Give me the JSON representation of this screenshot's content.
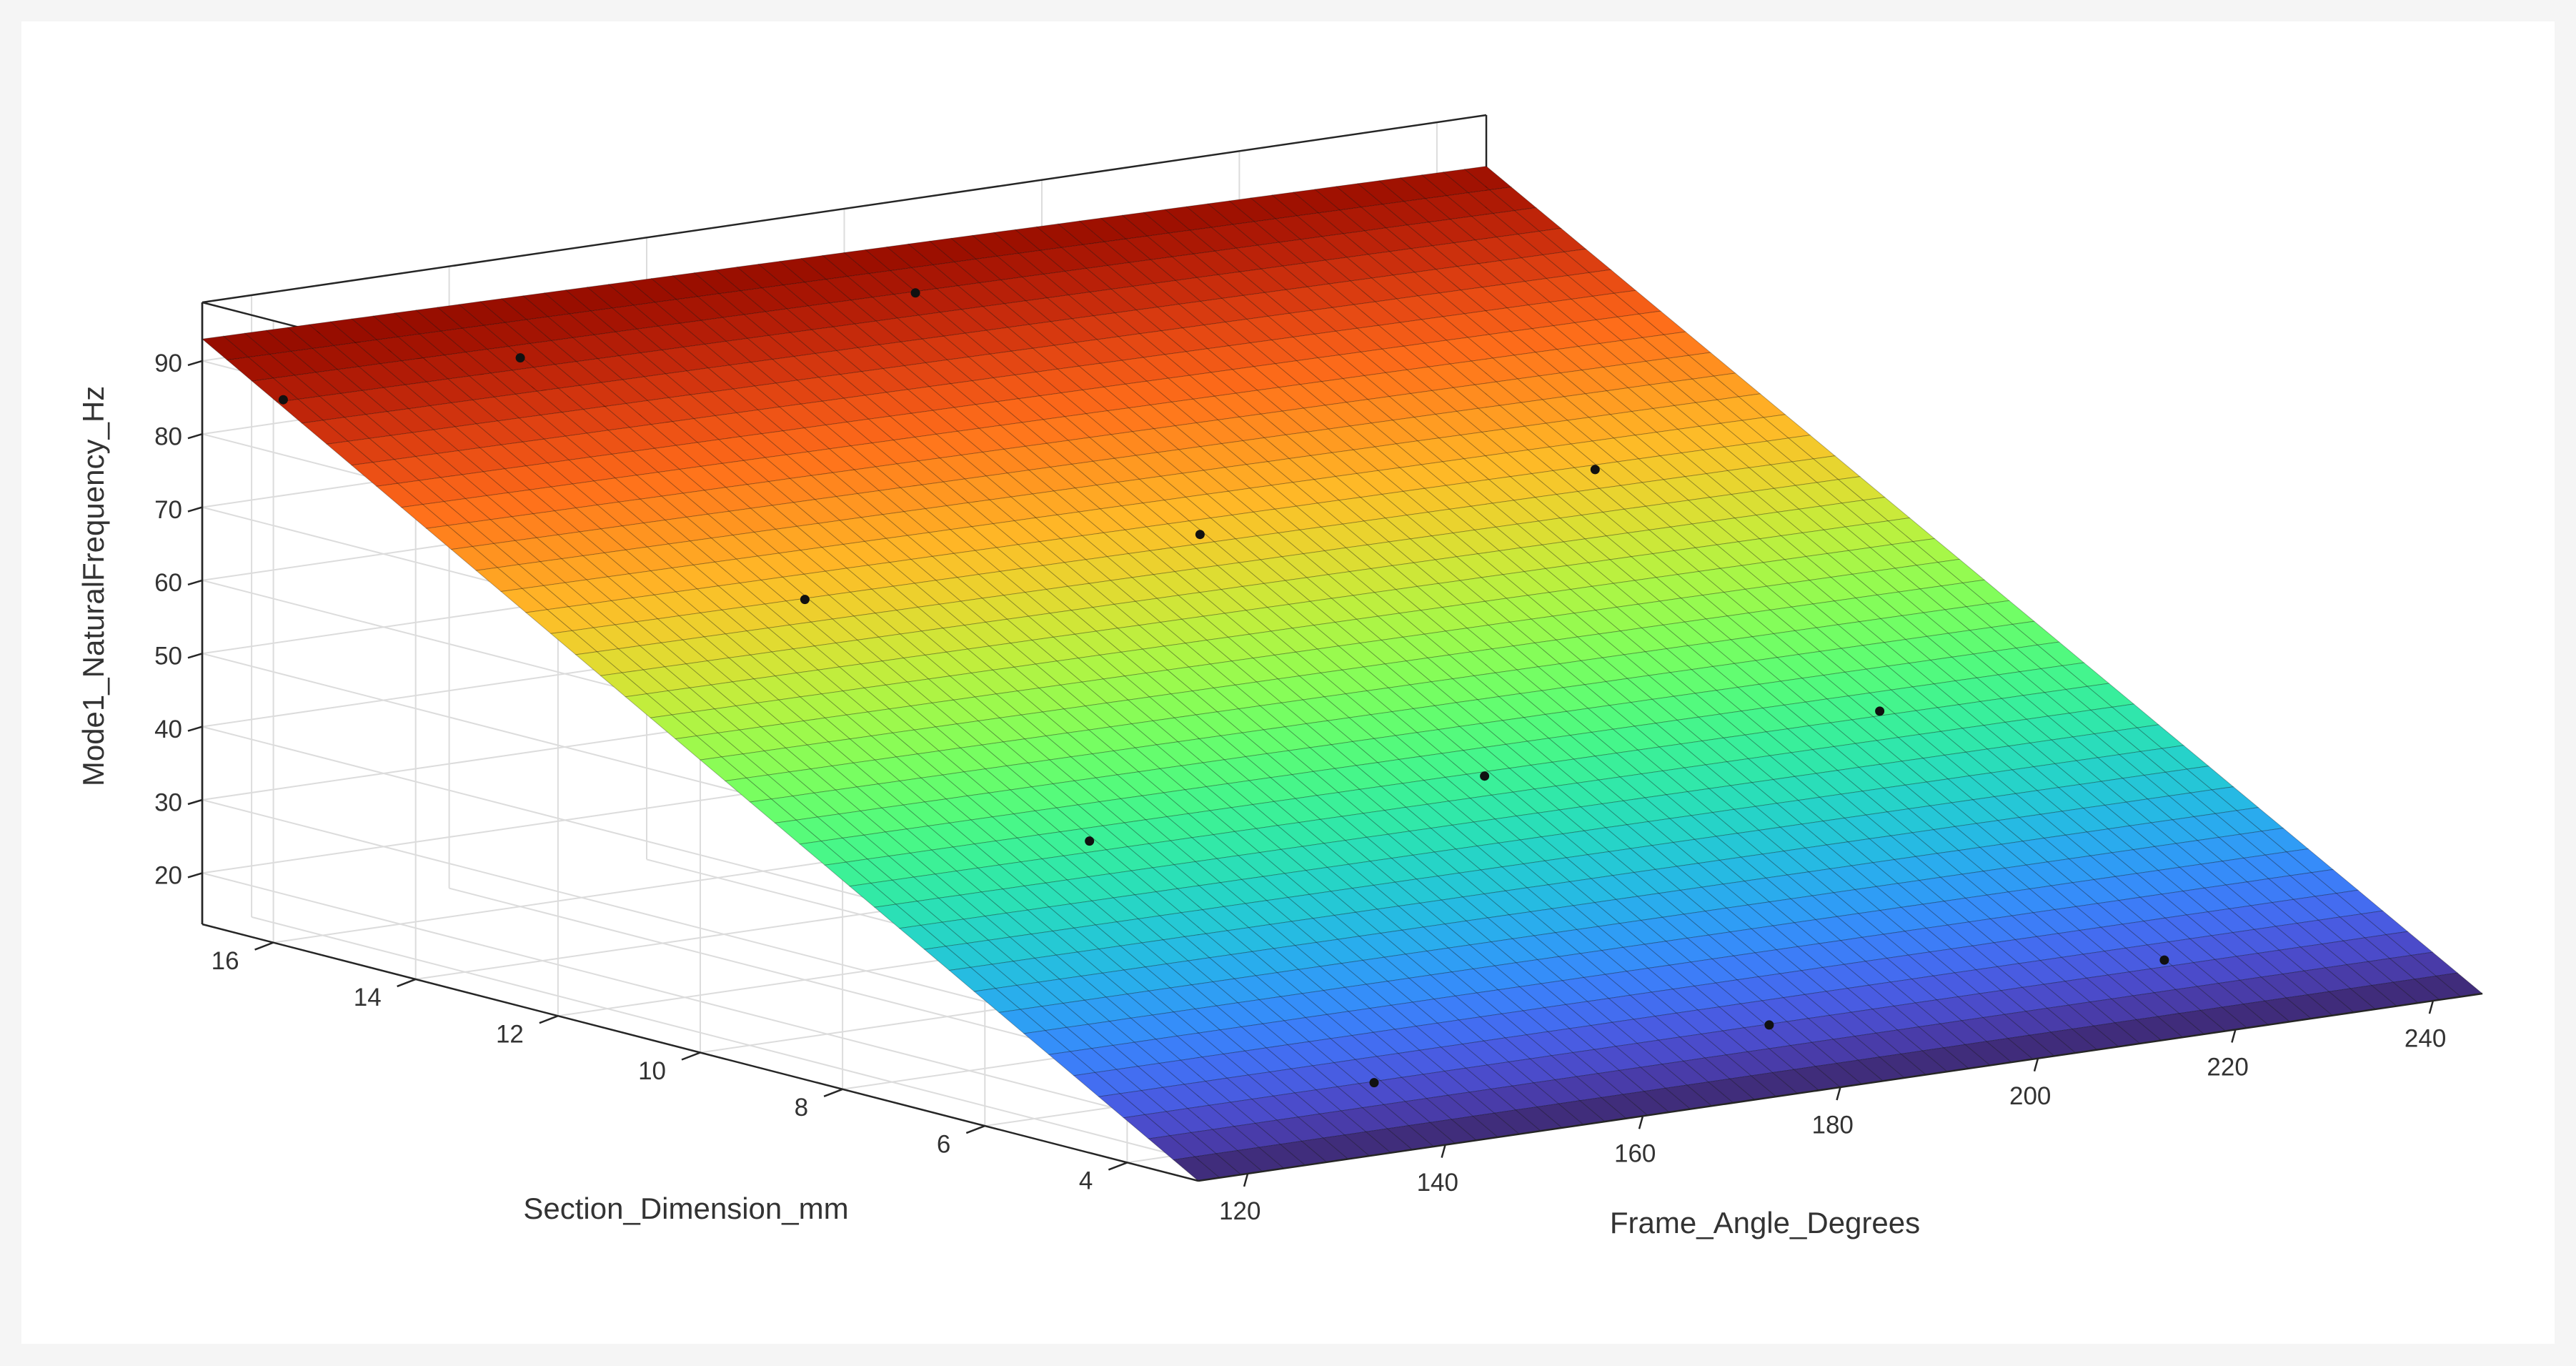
{
  "chart_data": {
    "type": "surface",
    "xlabel": "Frame_Angle_Degrees",
    "ylabel": "Section_Dimension_mm",
    "zlabel": "Mode1_NaturalFrequency_Hz",
    "x_ticks": [
      120,
      140,
      160,
      180,
      200,
      220,
      240
    ],
    "y_ticks": [
      4,
      6,
      8,
      10,
      12,
      14,
      16
    ],
    "z_ticks": [
      20,
      30,
      40,
      50,
      60,
      70,
      80,
      90
    ],
    "x_range": [
      115,
      245
    ],
    "y_range": [
      3,
      17
    ],
    "z_range": [
      13,
      98
    ],
    "grid": true,
    "colormap": "turbo",
    "surface_fit": {
      "corners": [
        {
          "x": 115,
          "y": 17,
          "z": 93
        },
        {
          "x": 245,
          "y": 17,
          "z": 91
        },
        {
          "x": 245,
          "y": 3,
          "z": 13
        },
        {
          "x": 115,
          "y": 3,
          "z": 13
        }
      ]
    },
    "points": [
      {
        "x": 116,
        "y": 16,
        "z": 87
      },
      {
        "x": 140,
        "y": 16,
        "z": 88
      },
      {
        "x": 180,
        "y": 16,
        "z": 89
      },
      {
        "x": 140,
        "y": 12,
        "z": 65
      },
      {
        "x": 180,
        "y": 12,
        "z": 66
      },
      {
        "x": 220,
        "y": 12,
        "z": 67
      },
      {
        "x": 140,
        "y": 8,
        "z": 42
      },
      {
        "x": 180,
        "y": 8,
        "z": 43
      },
      {
        "x": 220,
        "y": 8,
        "z": 44
      },
      {
        "x": 140,
        "y": 4,
        "z": 19
      },
      {
        "x": 180,
        "y": 4,
        "z": 19
      },
      {
        "x": 220,
        "y": 4,
        "z": 20
      }
    ]
  },
  "colors": {
    "panel_background": "#ffffff",
    "page_background": "#f5f5f5",
    "axis_line": "#262626",
    "grid_line": "#dcdcdc",
    "mesh_line": "#000000",
    "point": "#111111"
  }
}
